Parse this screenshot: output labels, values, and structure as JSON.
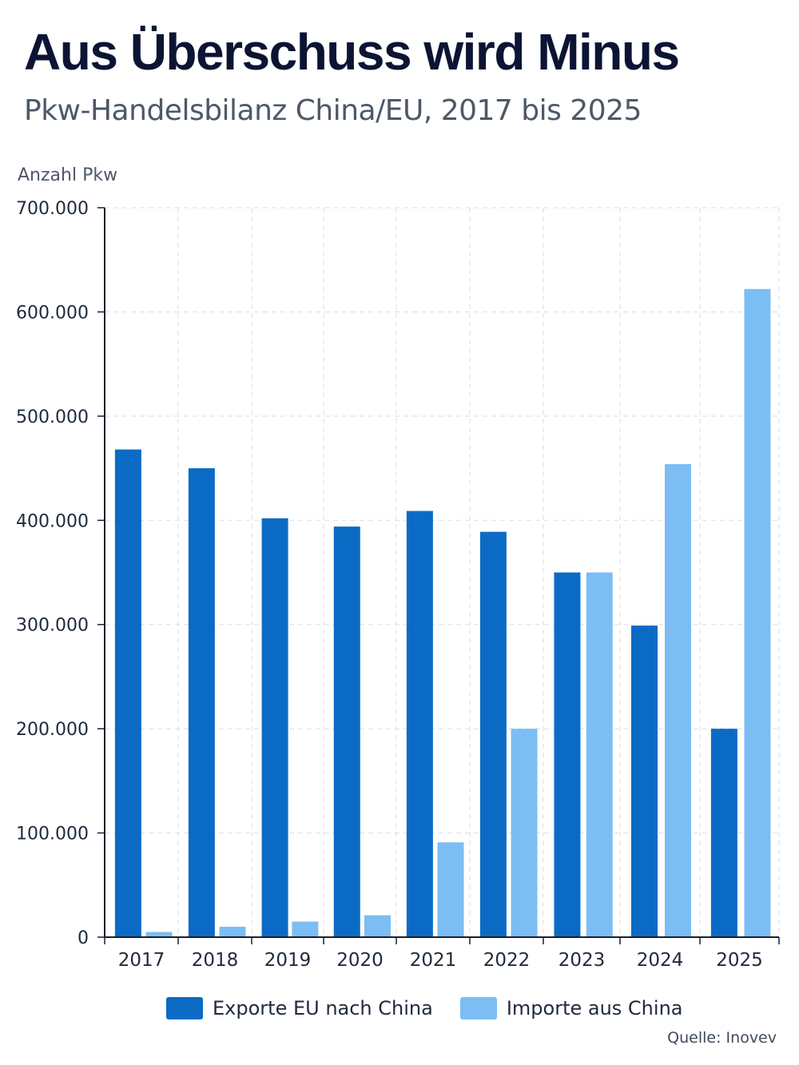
{
  "header": {
    "title": "Aus Überschuss wird Minus",
    "subtitle": "Pkw-Handelsbilanz China/EU, 2017 bis 2025"
  },
  "source": "Quelle: Inovev",
  "colors": {
    "exports": "#0b6bc4",
    "imports": "#7cbdf3",
    "grid": "#d9dde3",
    "axis": "#1a1f2b"
  },
  "chart_data": {
    "type": "bar",
    "ylabel": "Anzahl Pkw",
    "ylim": [
      0,
      700000
    ],
    "yticks": [
      0,
      100000,
      200000,
      300000,
      400000,
      500000,
      600000,
      700000
    ],
    "ytick_labels": [
      "0",
      "100.000",
      "200.000",
      "300.000",
      "400.000",
      "500.000",
      "600.000",
      "700.000"
    ],
    "categories": [
      "2017",
      "2018",
      "2019",
      "2020",
      "2021",
      "2022",
      "2023",
      "2024",
      "2025"
    ],
    "grid": true,
    "legend_position": "bottom",
    "series": [
      {
        "name": "Exporte EU nach China",
        "values": [
          468000,
          450000,
          402000,
          394000,
          409000,
          389000,
          350000,
          299000,
          200000
        ]
      },
      {
        "name": "Importe aus China",
        "values": [
          5000,
          10000,
          15000,
          21000,
          91000,
          200000,
          350000,
          454000,
          622000
        ]
      }
    ]
  }
}
